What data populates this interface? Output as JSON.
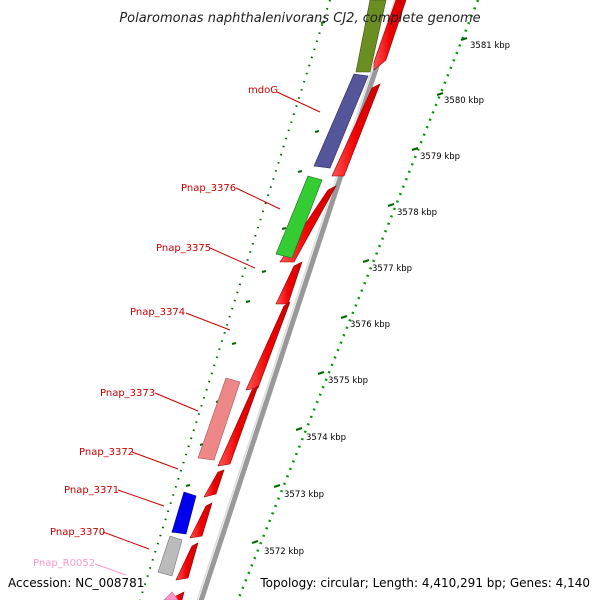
{
  "title": "Polaromonas naphthalenivorans CJ2, complete genome",
  "footer": {
    "accession": "Accession: NC_008781",
    "summary": "Topology: circular; Length: 4,410,291 bp; Genes: 4,140"
  },
  "colors": {
    "cds_forward": "#ff0000",
    "label_text": "#cc0000",
    "rrna_label": "#ff99cc",
    "kbp_ticks": "#008800",
    "gene_ticks": "#006600",
    "backbone": "#888888"
  },
  "kbp_ruler": [
    "3581 kbp",
    "3580 kbp",
    "3579 kbp",
    "3578 kbp",
    "3577 kbp",
    "3576 kbp",
    "3575 kbp",
    "3574 kbp",
    "3573 kbp",
    "3572 kbp"
  ],
  "genes": [
    {
      "label": "mdoG",
      "color": "#555599"
    },
    {
      "label": "Pnap_3376",
      "color": "#33cc33"
    },
    {
      "label": "Pnap_3375",
      "color": ""
    },
    {
      "label": "Pnap_3374",
      "color": ""
    },
    {
      "label": "Pnap_3373",
      "color": "#ee8888"
    },
    {
      "label": "Pnap_3372",
      "color": ""
    },
    {
      "label": "Pnap_3371",
      "color": "#0000ee"
    },
    {
      "label": "Pnap_3370",
      "color": "#bbbbbb"
    },
    {
      "label": "Pnap_R0052",
      "color": "#ff99cc"
    }
  ],
  "top_feature_color": "#6b8e23"
}
